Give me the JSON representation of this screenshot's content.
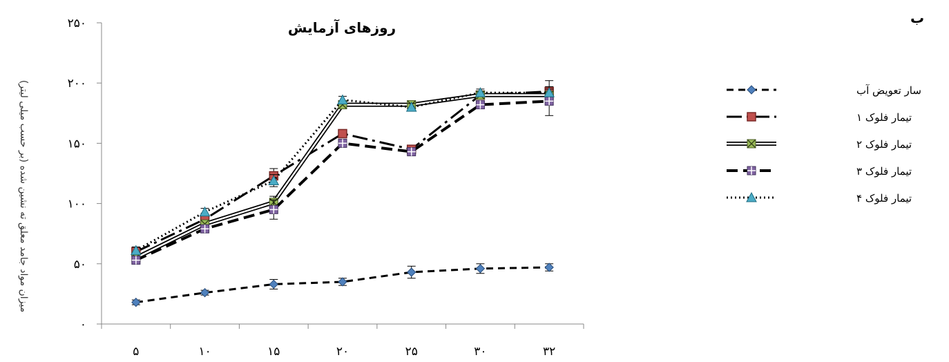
{
  "panel_label": "ب",
  "chart_data": {
    "type": "line",
    "title": "روزهای آزمایش",
    "ylabel": "میزان مواد جامد معلق ته نشین شده (بر حسب میلی لیتر)",
    "xlabel": "",
    "x": [
      "۵",
      "۱۰",
      "۱۵",
      "۲۰",
      "۲۵",
      "۳۰",
      "۳۲"
    ],
    "ylim": [
      0,
      250
    ],
    "yticks": [
      "۰",
      "۵۰",
      "۱۰۰",
      "۱۵۰",
      "۲۰۰",
      "۲۵۰"
    ],
    "ytick_values": [
      0,
      50,
      100,
      150,
      200,
      250
    ],
    "series": [
      {
        "name": "سار تعویض آب",
        "values": [
          18,
          26,
          33,
          35,
          43,
          46,
          47
        ],
        "errors": [
          2,
          2,
          4,
          3,
          5,
          4,
          3
        ],
        "color": "#000000",
        "marker_color": "#4f81bd",
        "marker": "diamond",
        "dash": "10,7",
        "width": 3
      },
      {
        "name": "تیمار فلوک ۱",
        "values": [
          60,
          87,
          123,
          158,
          145,
          190,
          193
        ],
        "errors": [
          3,
          3,
          6,
          3,
          3,
          3,
          9
        ],
        "color": "#000000",
        "marker_color": "#c0504d",
        "marker": "square",
        "dash": "22,7,4,7",
        "width": 3
      },
      {
        "name": "تیمار فلوک ۲",
        "values": [
          55,
          83,
          101,
          182,
          182,
          190,
          190
        ],
        "errors": [
          3,
          3,
          5,
          3,
          3,
          3,
          3
        ],
        "color": "#000000",
        "marker_color": "#9bbb59",
        "marker": "star",
        "dash": "",
        "width": 4,
        "double": true
      },
      {
        "name": "تیمار فلوک ۳",
        "values": [
          53,
          79,
          95,
          150,
          143,
          182,
          185
        ],
        "errors": [
          3,
          3,
          8,
          3,
          3,
          3,
          12
        ],
        "color": "#000000",
        "marker_color": "#8064a2",
        "marker": "plus",
        "dash": "16,8",
        "width": 4
      },
      {
        "name": "تیمار فلوک ۴",
        "values": [
          61,
          93,
          119,
          186,
          180,
          192,
          192
        ],
        "errors": [
          3,
          3,
          5,
          3,
          3,
          3,
          3
        ],
        "color": "#000000",
        "marker_color": "#4bacc6",
        "marker": "triangle",
        "dash": "2,4",
        "width": 3
      }
    ],
    "grid": false,
    "legend_position": "right"
  }
}
